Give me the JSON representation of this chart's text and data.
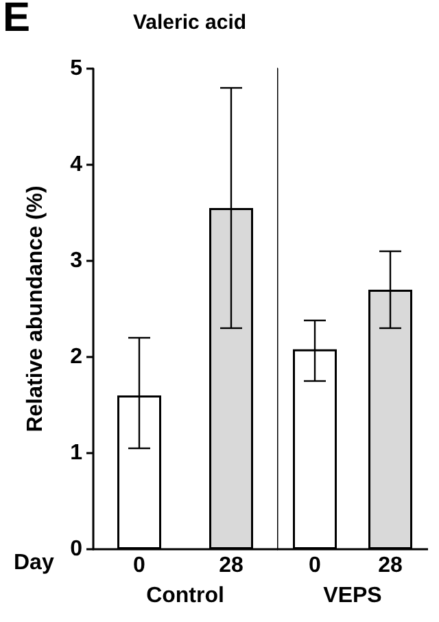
{
  "chart_data": [
    {
      "type": "bar",
      "title": "Valeric acid",
      "annotations": [
        "E",
        "Day"
      ],
      "categories": [
        "0",
        "28"
      ],
      "xlabel": "Control",
      "ylabel": "Relative abundance (%)",
      "colors": [
        "#ffffff",
        "#d9d9d9"
      ],
      "values": [
        1.6,
        3.55
      ],
      "errors": [
        [
          1.05,
          2.2
        ],
        [
          2.3,
          4.8
        ]
      ],
      "ylim": [
        0,
        5
      ],
      "yticks": [
        0,
        1,
        2,
        3,
        4,
        5
      ]
    },
    {
      "type": "bar",
      "categories": [
        "0",
        "28"
      ],
      "xlabel": "VEPS",
      "colors": [
        "#ffffff",
        "#d9d9d9"
      ],
      "values": [
        2.08,
        2.7
      ],
      "errors": [
        [
          1.75,
          2.38
        ],
        [
          2.3,
          3.1
        ]
      ],
      "ylim": [
        0,
        5
      ],
      "yticks": [
        0,
        1,
        2,
        3,
        4,
        5
      ],
      "tick_labels": "x"
    }
  ]
}
